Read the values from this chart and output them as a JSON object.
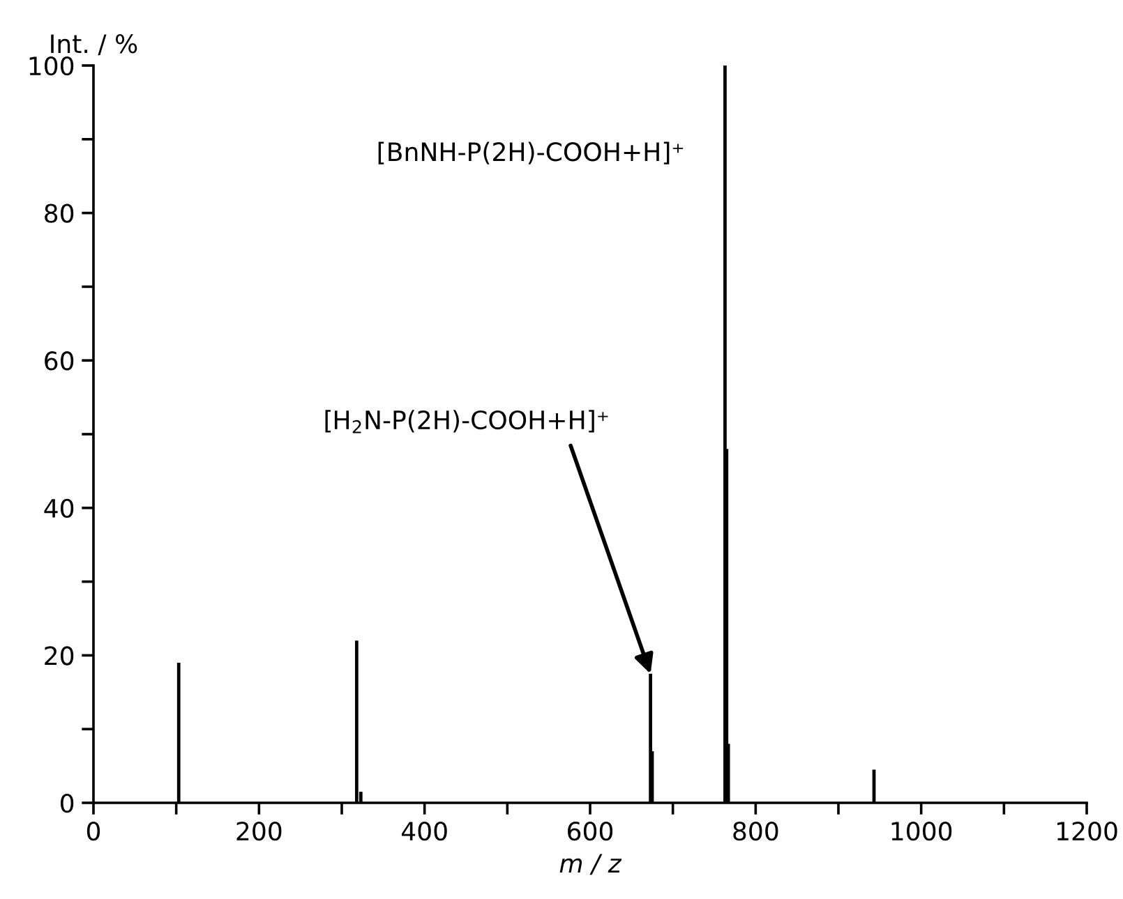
{
  "chart_data": {
    "type": "bar",
    "xlabel": "m / z",
    "ylabel": "Int. / %",
    "x": [
      103,
      318,
      323,
      673,
      675,
      763,
      765,
      767,
      943
    ],
    "values": [
      19,
      22,
      1.5,
      17.5,
      7,
      100,
      48,
      8,
      4.5
    ],
    "color": "#000000",
    "xlim": [
      0,
      1200
    ],
    "ylim": [
      0,
      100
    ],
    "xticks": [
      0,
      {
        "value": 100,
        "label": null
      },
      200,
      {
        "value": 300,
        "label": null
      },
      400,
      {
        "value": 500,
        "label": null
      },
      600,
      {
        "value": 700,
        "label": null
      },
      800,
      {
        "value": 900,
        "label": null
      },
      1000,
      {
        "value": 1100,
        "label": null
      },
      1200
    ],
    "yticks": [
      0,
      {
        "value": 10,
        "label": null
      },
      20,
      {
        "value": 30,
        "label": null
      },
      40,
      {
        "value": 50,
        "label": null
      },
      60,
      {
        "value": 70,
        "label": null
      },
      80,
      {
        "value": 90,
        "label": null
      },
      100
    ],
    "grid": false,
    "annotations": [
      "[BnNH-P(2H)-COOH+H]⁺",
      {
        "text": "[H$_{2}$N-P(2H)-COOH+H]⁺",
        "x": 673,
        "y": 17.5
      }
    ]
  }
}
